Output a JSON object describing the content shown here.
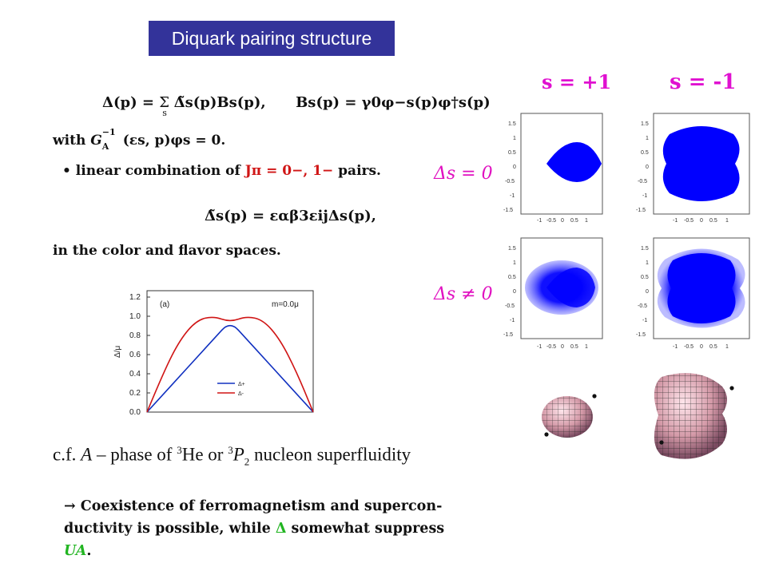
{
  "slide": {
    "title": "Diquark pairing structure",
    "eq1": {
      "lhs": "Δ(p) = ",
      "sum": "Σ",
      "sum_index": "s",
      "term": "Δ̃s(p)Bs(p),",
      "rhs": "Bs(p) = γ0φ−s(p)φ†s(p)"
    },
    "with_line": {
      "prefix": "with ",
      "expr": "G",
      "sub": "A",
      "sup": "−1",
      "rest": "(εs, p)φs = 0."
    },
    "bullet": {
      "symbol": "•",
      "text_before": "linear combination of ",
      "jpi": "Jπ = 0−, 1−",
      "text_after": " pairs."
    },
    "eq2": "Δ̃s(p) = εαβ3εijΔs(p),",
    "color_flavor": "in the color and flavor spaces.",
    "delta_zero": "Δs = 0",
    "delta_nonzero": "Δs ≠ 0",
    "cf": {
      "prefix": "c.f. ",
      "A": "A",
      "phase": " – phase of  ",
      "he_sup": "3",
      "he": "He or ",
      "p_sup": "3",
      "p": "P",
      "p_sub": "2",
      "rest": " nucleon superfluidity"
    },
    "conclusion": {
      "arrow": "→",
      "line1": "Coexistence of ferromagnetism and supercon-",
      "line2_before": "ductivity is possible, while ",
      "delta": "Δ",
      "line2_after": " somewhat suppress",
      "ua": "UA",
      "period": "."
    }
  },
  "spin_labels": {
    "plus": "s = +1",
    "minus": "s = -1"
  },
  "colors": {
    "title_bg": "#33339a",
    "magenta": "#e010d0",
    "red": "#d01515",
    "green": "#22b522",
    "blue": "#0000ff"
  },
  "mini_plots": {
    "ticks_y": [
      "1.5",
      "1",
      "0.5",
      "0",
      "-0.5",
      "-1",
      "-1.5"
    ],
    "ticks_x": [
      "-1",
      "-0.5",
      "0",
      "0.5",
      "1"
    ]
  },
  "chart_data": {
    "type": "line",
    "panel_label": "(a)",
    "annotation": "m=0.0μ",
    "ylabel": "Δ/μ",
    "xlabel": "",
    "ylim": [
      0.0,
      1.2
    ],
    "xlim": [
      0,
      1
    ],
    "yticks": [
      "0.0",
      "0.2",
      "0.4",
      "0.6",
      "0.8",
      "1.0",
      "1.2"
    ],
    "grid": false,
    "legend_position": "bottom-right",
    "series": [
      {
        "name": "Δ+",
        "color": "#1030c0",
        "x": [
          0.0,
          0.1,
          0.2,
          0.3,
          0.4,
          0.5,
          0.6,
          0.7,
          0.8,
          0.9,
          1.0
        ],
        "values": [
          0.0,
          0.19,
          0.38,
          0.57,
          0.76,
          0.95,
          0.76,
          0.57,
          0.38,
          0.19,
          0.0
        ]
      },
      {
        "name": "Δ-",
        "color": "#d01515",
        "x": [
          0.0,
          0.1,
          0.2,
          0.3,
          0.4,
          0.5,
          0.6,
          0.7,
          0.8,
          0.9,
          1.0
        ],
        "values": [
          0.0,
          0.42,
          0.76,
          0.96,
          1.0,
          0.94,
          1.0,
          0.96,
          0.76,
          0.42,
          0.0
        ]
      }
    ]
  }
}
